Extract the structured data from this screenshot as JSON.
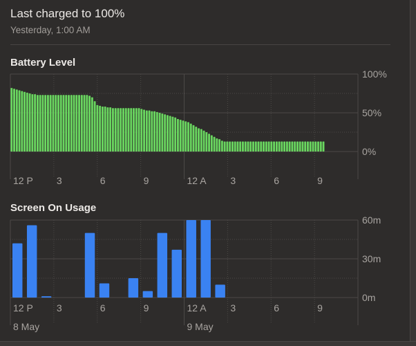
{
  "header": {
    "title": "Last charged to 100%",
    "subtitle": "Yesterday, 1:00 AM"
  },
  "colors": {
    "background": "#2e2c2b",
    "battery_bar": "#6ad760",
    "usage_bar": "#3a82f2",
    "grid": "#4c4947",
    "label": "#a9a5a1"
  },
  "chart_data": [
    {
      "type": "bar",
      "title": "Battery Level",
      "y_ticks": [
        "100%",
        "50%",
        "0%"
      ],
      "ylim": [
        0,
        100
      ],
      "x_tick_labels": [
        "12 P",
        "3",
        "6",
        "9",
        "12 A",
        "3",
        "6",
        "9"
      ],
      "values": [
        82,
        81,
        80,
        79,
        78,
        77,
        76,
        75,
        74,
        74,
        73,
        73,
        73,
        73,
        73,
        73,
        73,
        73,
        73,
        73,
        73,
        73,
        73,
        73,
        73,
        73,
        73,
        73,
        73,
        73,
        72,
        70,
        65,
        60,
        59,
        58,
        58,
        57,
        57,
        56,
        56,
        56,
        56,
        56,
        56,
        56,
        56,
        56,
        56,
        56,
        55,
        54,
        53,
        53,
        52,
        52,
        51,
        50,
        49,
        48,
        47,
        46,
        45,
        44,
        42,
        41,
        40,
        39,
        38,
        36,
        34,
        32,
        30,
        29,
        27,
        25,
        23,
        21,
        19,
        17,
        16,
        14,
        13,
        13,
        13,
        13,
        13,
        13,
        13,
        13,
        13,
        13,
        13,
        13,
        13,
        13,
        13,
        13,
        13,
        13,
        13,
        13,
        13,
        13,
        13,
        13,
        13,
        13,
        13,
        13,
        13,
        13,
        13,
        13,
        13,
        13,
        13,
        13,
        13,
        13,
        13
      ]
    },
    {
      "type": "bar",
      "title": "Screen On Usage",
      "y_ticks": [
        "60m",
        "30m",
        "0m"
      ],
      "ylim": [
        0,
        60
      ],
      "x_tick_labels": [
        "12 P",
        "3",
        "6",
        "9",
        "12 A",
        "3",
        "6",
        "9"
      ],
      "date_labels": [
        "8 May",
        "9 May"
      ],
      "values": [
        42,
        56,
        1,
        0,
        0,
        50,
        11,
        0,
        15,
        5,
        50,
        37,
        60,
        60,
        10,
        0,
        0,
        0,
        0,
        0,
        0,
        0,
        0,
        0
      ]
    }
  ]
}
